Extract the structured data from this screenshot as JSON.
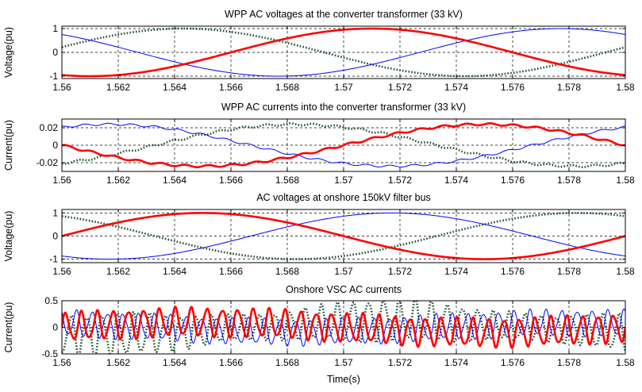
{
  "figure": {
    "xlabel": "Time(s)",
    "x_tick_labels": [
      "1.56",
      "1.562",
      "1.564",
      "1.566",
      "1.568",
      "1.57",
      "1.572",
      "1.574",
      "1.576",
      "1.578",
      "1.58"
    ]
  },
  "colors": {
    "phase_a": "#ff0000",
    "phase_b": "#0000ff",
    "phase_c": "#1f4f2f",
    "grid": "#000000"
  },
  "chart_data": [
    {
      "type": "line",
      "title": "WPP AC voltages at the converter transformer (33 kV)",
      "ylabel": "Voltage(pu)",
      "xlim": [
        1.56,
        1.58
      ],
      "ylim": [
        -1.1,
        1.1
      ],
      "y_ticks": [
        "-1",
        "0",
        "1"
      ],
      "y_tick_values": [
        -1,
        0,
        1
      ],
      "grid": true,
      "series": [
        {
          "color": "#ff0000",
          "style": "solid-thick",
          "waveform": "sine",
          "amplitude": 1.0,
          "frequency_hz": 50,
          "peak_time": 1.571,
          "x": [
            1.56,
            1.5635,
            1.566,
            1.571,
            1.576,
            1.5785,
            1.58
          ],
          "y": [
            -1.0,
            -0.62,
            0.0,
            1.0,
            0.0,
            -0.62,
            -1.0
          ]
        },
        {
          "color": "#0000ff",
          "style": "solid-thin",
          "waveform": "sine",
          "amplitude": 1.0,
          "frequency_hz": 50,
          "peak_time": 1.5777,
          "x": [
            1.56,
            1.564,
            1.5643,
            1.5727,
            1.5777,
            1.58
          ],
          "y": [
            0.86,
            0.0,
            -0.05,
            0.0,
            1.0,
            0.86
          ]
        },
        {
          "color": "#1f4f2f",
          "style": "dotted-thick",
          "waveform": "sine",
          "amplitude": 1.0,
          "frequency_hz": 50,
          "peak_time": 1.5643,
          "x": [
            1.56,
            1.5643,
            1.568,
            1.5743,
            1.58
          ],
          "y": [
            0.15,
            1.0,
            0.0,
            -1.0,
            0.2
          ]
        }
      ]
    },
    {
      "type": "line",
      "title": "WPP AC currents into the converter transformer (33 kV)",
      "ylabel": "Current(pu)",
      "xlim": [
        1.56,
        1.58
      ],
      "ylim": [
        -0.03,
        0.03
      ],
      "y_ticks": [
        "-0.02",
        "0",
        "0.02"
      ],
      "y_tick_values": [
        -0.02,
        0,
        0.02
      ],
      "grid": true,
      "series": [
        {
          "color": "#ff0000",
          "style": "solid-thick",
          "waveform": "sine",
          "amplitude": 0.024,
          "frequency_hz": 50,
          "peak_time": 1.575,
          "x": [
            1.56,
            1.565,
            1.57,
            1.575,
            1.58
          ],
          "y": [
            0.005,
            -0.024,
            0.0,
            0.024,
            0.008
          ]
        },
        {
          "color": "#0000ff",
          "style": "solid-thin",
          "waveform": "sine",
          "amplitude": 0.024,
          "frequency_hz": 50,
          "peak_time": 1.5617,
          "x": [
            1.56,
            1.5617,
            1.5667,
            1.5717,
            1.5767,
            1.58
          ],
          "y": [
            0.02,
            0.024,
            0.0,
            -0.024,
            0.0,
            0.017
          ]
        },
        {
          "color": "#1f4f2f",
          "style": "dotted-thick",
          "waveform": "sine",
          "amplitude": 0.024,
          "frequency_hz": 50,
          "peak_time": 1.5683,
          "x": [
            1.56,
            1.5633,
            1.5683,
            1.5733,
            1.58
          ],
          "y": [
            -0.024,
            0.0,
            0.024,
            0.0,
            -0.024
          ]
        }
      ]
    },
    {
      "type": "line",
      "title": "AC voltages at onshore 150kV filter bus",
      "ylabel": "Voltage(pu)",
      "xlim": [
        1.56,
        1.58
      ],
      "ylim": [
        -1.15,
        1.15
      ],
      "y_ticks": [
        "-1",
        "0",
        "1"
      ],
      "y_tick_values": [
        -1,
        0,
        1
      ],
      "grid": true,
      "series": [
        {
          "color": "#ff0000",
          "style": "solid-thick",
          "waveform": "sine",
          "amplitude": 1.0,
          "frequency_hz": 50,
          "peak_time": 1.565,
          "x": [
            1.56,
            1.565,
            1.57,
            1.575,
            1.58
          ],
          "y": [
            0.0,
            1.0,
            0.0,
            -1.0,
            0.0
          ]
        },
        {
          "color": "#0000ff",
          "style": "solid-thin",
          "waveform": "sine",
          "amplitude": 1.0,
          "frequency_hz": 50,
          "peak_time": 1.5717,
          "x": [
            1.56,
            1.5617,
            1.5667,
            1.5717,
            1.5767,
            1.58
          ],
          "y": [
            -0.87,
            -1.0,
            0.0,
            1.0,
            0.0,
            -0.87
          ]
        },
        {
          "color": "#1f4f2f",
          "style": "dotted-thick",
          "waveform": "sine",
          "amplitude": 1.0,
          "frequency_hz": 50,
          "peak_time": 1.5783,
          "x": [
            1.56,
            1.5633,
            1.5683,
            1.5733,
            1.5783,
            1.58
          ],
          "y": [
            0.87,
            0.0,
            -1.0,
            0.0,
            1.0,
            0.87
          ]
        }
      ]
    },
    {
      "type": "line",
      "title": "Onshore VSC AC currents",
      "ylabel": "Current(pu)",
      "xlabel": "Time(s)",
      "xlim": [
        1.56,
        1.58
      ],
      "ylim": [
        -0.5,
        0.5
      ],
      "y_ticks": [
        "-0.5",
        "0",
        "0.5"
      ],
      "y_tick_values": [
        -0.5,
        0,
        0.5
      ],
      "grid": true,
      "series": [
        {
          "color": "#ff0000",
          "style": "solid-thick",
          "waveform": "harmonic-oscillation",
          "amplitude": 0.35,
          "frequency_hz": 1800,
          "mean": 0.0
        },
        {
          "color": "#0000ff",
          "style": "solid-thin",
          "waveform": "harmonic-oscillation",
          "amplitude": 0.32,
          "frequency_hz": 1800,
          "mean": 0.0
        },
        {
          "color": "#1f4f2f",
          "style": "dotted-thick",
          "waveform": "harmonic-oscillation",
          "amplitude": 0.42,
          "frequency_hz": 1800,
          "mean": 0.0
        }
      ]
    }
  ]
}
